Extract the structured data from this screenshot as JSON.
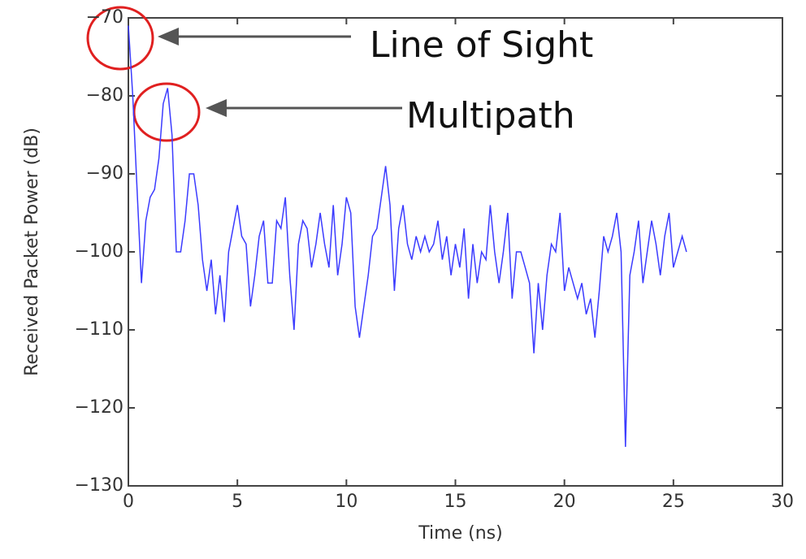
{
  "chart_data": {
    "type": "line",
    "xlabel": "Time (ns)",
    "ylabel": "Received Packet Power (dB)",
    "annotations": [
      "Line of Sight",
      "Multipath"
    ],
    "x": [
      0,
      0.2,
      0.4,
      0.6,
      0.8,
      1,
      1.2,
      1.4,
      1.6,
      1.8,
      2,
      2.2,
      2.4,
      2.6,
      2.8,
      3,
      3.2,
      3.4,
      3.6,
      3.8,
      4,
      4.2,
      4.4,
      4.6,
      4.8,
      5,
      5.2,
      5.4,
      5.6,
      5.8,
      6,
      6.2,
      6.4,
      6.6,
      6.8,
      7,
      7.2,
      7.4,
      7.6,
      7.8,
      8,
      8.2,
      8.4,
      8.6,
      8.8,
      9,
      9.2,
      9.4,
      9.6,
      9.8,
      10,
      10.2,
      10.4,
      10.6,
      10.8,
      11,
      11.2,
      11.4,
      11.6,
      11.8,
      12,
      12.2,
      12.4,
      12.6,
      12.8,
      13,
      13.2,
      13.4,
      13.6,
      13.8,
      14,
      14.2,
      14.4,
      14.6,
      14.8,
      15,
      15.2,
      15.4,
      15.6,
      15.8,
      16,
      16.2,
      16.4,
      16.6,
      16.8,
      17,
      17.2,
      17.4,
      17.6,
      17.8,
      18,
      18.2,
      18.4,
      18.6,
      18.8,
      19,
      19.2,
      19.4,
      19.6,
      19.8,
      20,
      20.2,
      20.4,
      20.6,
      20.8,
      21,
      21.2,
      21.4,
      21.6,
      21.8,
      22,
      22.2,
      22.4,
      22.6,
      22.8,
      23,
      23.2,
      23.4,
      23.6,
      23.8,
      24,
      24.2,
      24.4,
      24.6,
      24.8,
      25,
      25.2,
      25.4,
      25.6
    ],
    "series": [
      {
        "color": "#3b3bff",
        "values": [
          -71,
          -80,
          -92,
          -104,
          -96,
          -93,
          -92,
          -88,
          -81,
          -79,
          -85,
          -100,
          -100,
          -96,
          -90,
          -90,
          -94,
          -101,
          -105,
          -101,
          -108,
          -103,
          -109,
          -100,
          -97,
          -94,
          -98,
          -99,
          -107,
          -103,
          -98,
          -96,
          -104,
          -104,
          -96,
          -97,
          -93,
          -103,
          -110,
          -99,
          -96,
          -97,
          -102,
          -99,
          -95,
          -99,
          -102,
          -94,
          -103,
          -99,
          -93,
          -95,
          -107,
          -111,
          -107,
          -103,
          -98,
          -97,
          -93,
          -89,
          -94,
          -105,
          -97,
          -94,
          -99,
          -101,
          -98,
          -100,
          -98,
          -100,
          -99,
          -96,
          -101,
          -98,
          -103,
          -99,
          -102,
          -97,
          -106,
          -99,
          -104,
          -100,
          -101,
          -94,
          -100,
          -104,
          -100,
          -95,
          -106,
          -100,
          -100,
          -102,
          -104,
          -113,
          -104,
          -110,
          -103,
          -99,
          -100,
          -95,
          -105,
          -102,
          -104,
          -106,
          -104,
          -108,
          -106,
          -111,
          -105,
          -98,
          -100,
          -98,
          -95,
          -100,
          -125,
          -103,
          -100,
          -96,
          -104,
          -100,
          -96,
          -99,
          -103,
          -98,
          -95,
          -102,
          -100,
          -98,
          -100
        ]
      }
    ],
    "xlim": [
      0,
      30
    ],
    "xticks": [
      0,
      5,
      10,
      15,
      20,
      25,
      30
    ],
    "ylim": [
      -130,
      -70
    ],
    "yticks": [
      {
        "value": -130,
        "label": "−130"
      },
      {
        "value": -120,
        "label": "−120"
      },
      {
        "value": -110,
        "label": "−110"
      },
      {
        "value": -100,
        "label": "−100"
      },
      {
        "value": -90,
        "label": "−90"
      },
      {
        "value": -80,
        "label": "−80"
      },
      {
        "value": -70,
        "label": "−70"
      }
    ],
    "grid": false
  }
}
